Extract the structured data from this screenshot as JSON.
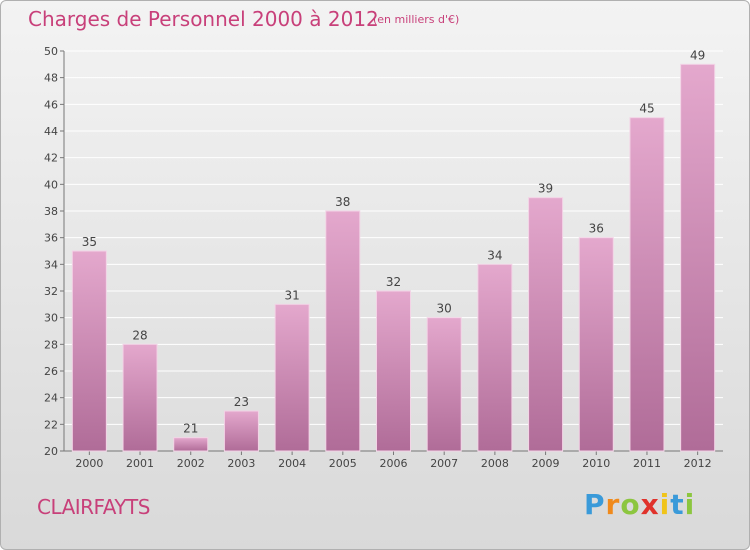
{
  "title": "Charges de Personnel 2000 à 2012",
  "subtitle": "(en milliers d'€)",
  "city": "CLAIRFAYTS",
  "logo": {
    "letters": [
      "P",
      "r",
      "o",
      "x",
      "i",
      "t",
      "i"
    ],
    "colors": [
      "#3a9ad9",
      "#f08a1c",
      "#8cc63f",
      "#e0322b",
      "#f0c419",
      "#3a9ad9",
      "#8cc63f"
    ]
  },
  "colors": {
    "accent": "#c8407a",
    "bar_top": "#e4a8cd",
    "bar_bottom": "#b06c98"
  },
  "chart_data": {
    "type": "bar",
    "categories": [
      "2000",
      "2001",
      "2002",
      "2003",
      "2004",
      "2005",
      "2006",
      "2007",
      "2008",
      "2009",
      "2010",
      "2011",
      "2012"
    ],
    "values": [
      35,
      28,
      21,
      23,
      31,
      38,
      32,
      30,
      34,
      39,
      36,
      45,
      49
    ],
    "ylim": [
      20,
      50
    ],
    "yticks": [
      20,
      22,
      24,
      26,
      28,
      30,
      32,
      34,
      36,
      38,
      40,
      42,
      44,
      46,
      48,
      50
    ],
    "grid": true
  }
}
